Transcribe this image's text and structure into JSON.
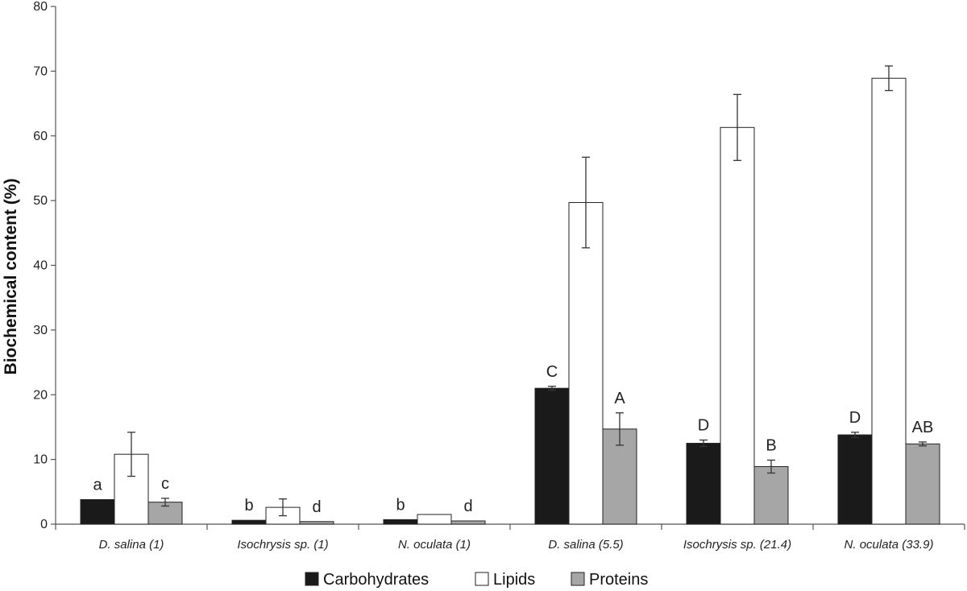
{
  "chart_data": {
    "type": "bar",
    "title": "",
    "xlabel": "",
    "ylabel": "Biochemical content (%)",
    "ylim": [
      0,
      80
    ],
    "yticks": [
      0,
      10,
      20,
      30,
      40,
      50,
      60,
      70,
      80
    ],
    "grid": false,
    "legend_position": "bottom-center",
    "categories": [
      "D. salina (1)",
      "Isochrysis sp. (1)",
      "N. oculata (1)",
      "D. salina (5.5)",
      "Isochrysis sp. (21.4)",
      "N. oculata (33.9)"
    ],
    "series": [
      {
        "name": "Carbohydrates",
        "color": "#1a1a1a",
        "values": [
          3.8,
          0.6,
          0.7,
          21.0,
          12.5,
          13.8
        ],
        "errors": [
          0,
          0,
          0,
          0.3,
          0.5,
          0.4
        ],
        "labels": [
          "a",
          "b",
          "b",
          "C",
          "D",
          "D"
        ]
      },
      {
        "name": "Lipids",
        "color": "#ffffff",
        "values": [
          10.8,
          2.6,
          1.5,
          49.7,
          61.3,
          68.9
        ],
        "errors": [
          3.4,
          1.3,
          0,
          7.0,
          5.1,
          1.9
        ],
        "labels": [
          "",
          "",
          "",
          "",
          "",
          ""
        ]
      },
      {
        "name": "Proteins",
        "color": "#a6a6a6",
        "values": [
          3.4,
          0.4,
          0.5,
          14.7,
          8.9,
          12.4
        ],
        "errors": [
          0.6,
          0,
          0,
          2.5,
          1.0,
          0.3
        ],
        "labels": [
          "c",
          "d",
          "d",
          "A",
          "B",
          "AB"
        ]
      }
    ]
  }
}
